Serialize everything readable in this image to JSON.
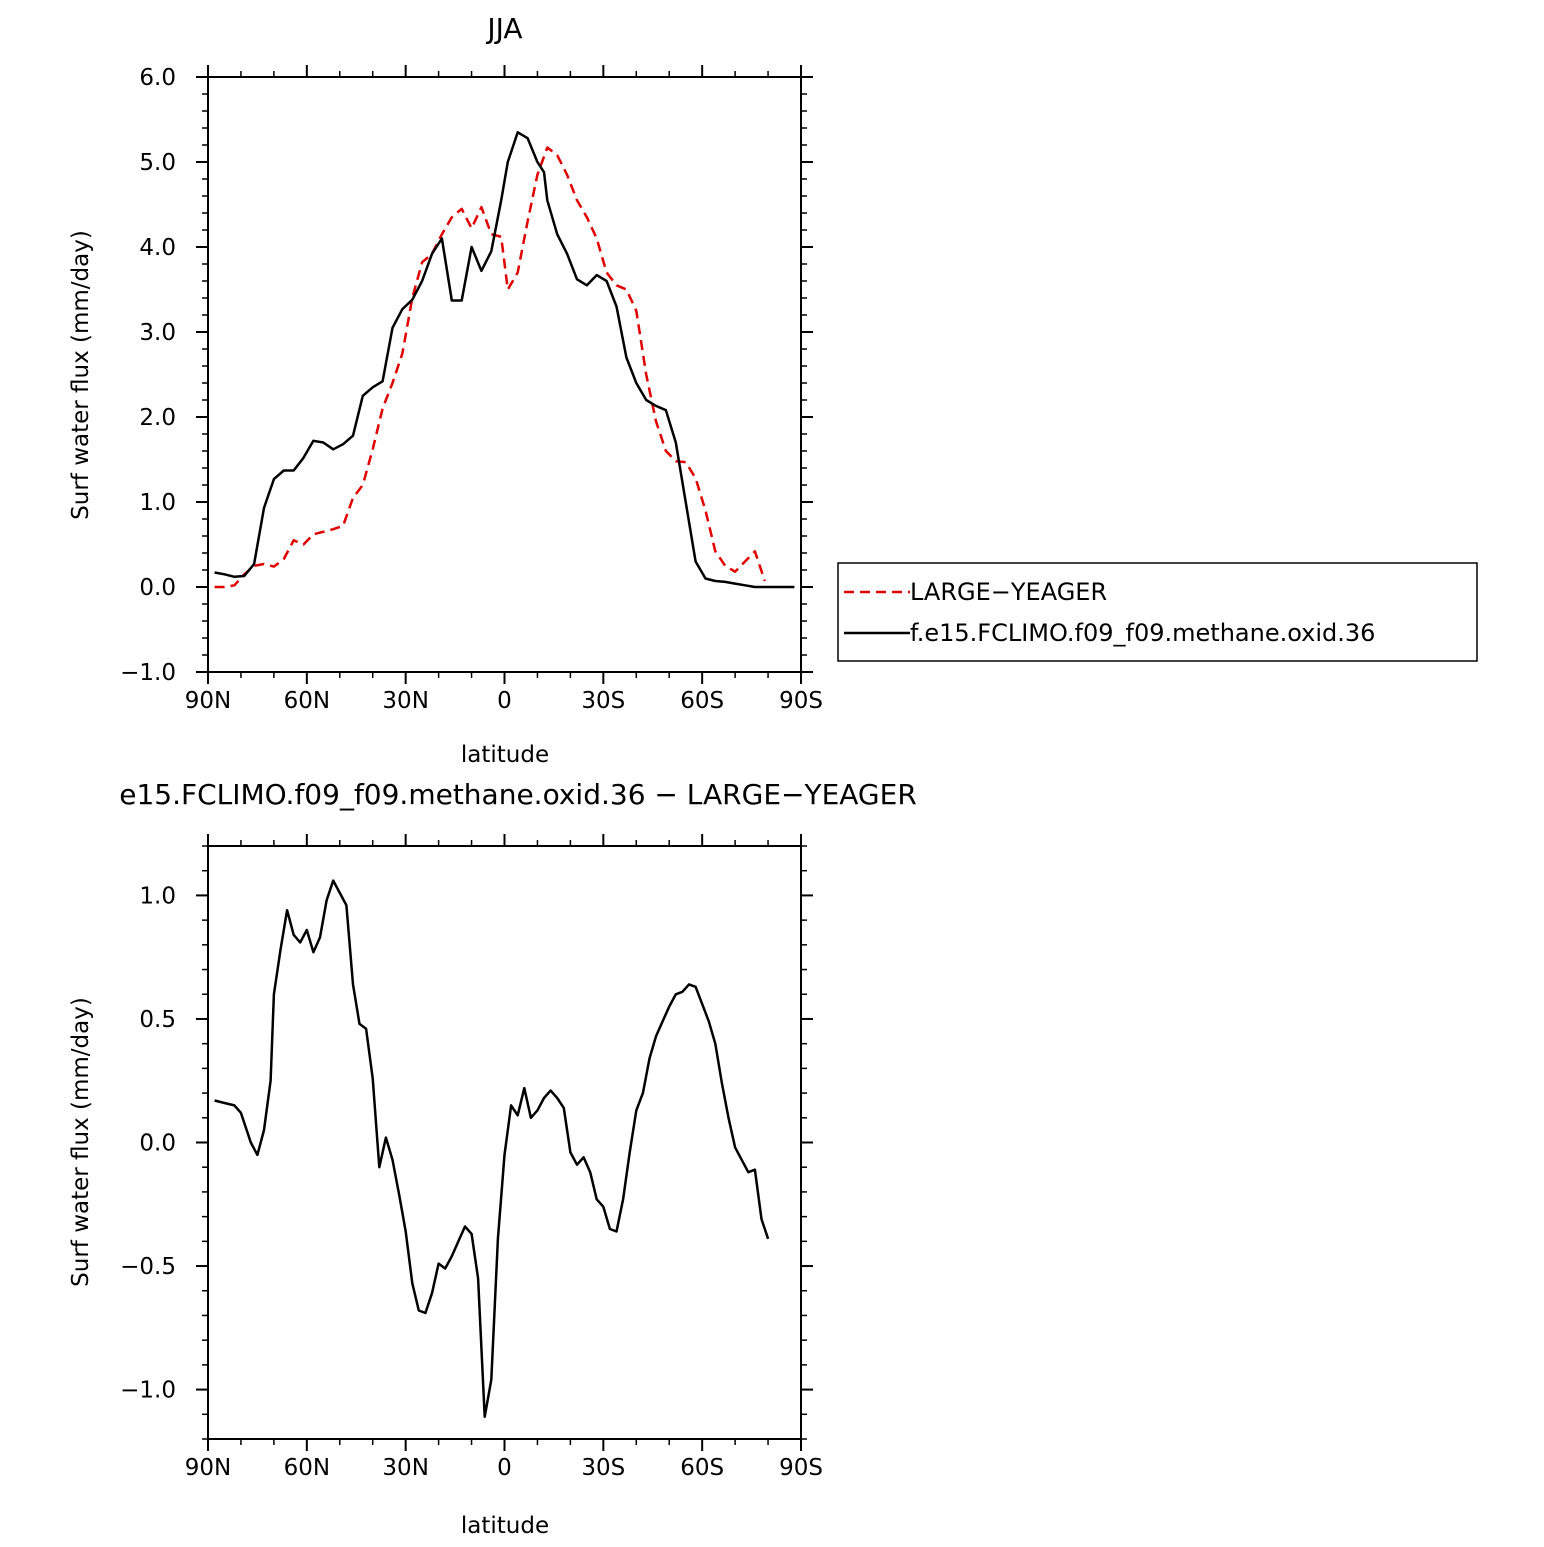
{
  "chart_data": [
    {
      "type": "line",
      "title": "JJA",
      "xlabel": "latitude",
      "ylabel": "Surf water flux (mm/day)",
      "xlim": [
        90,
        -90
      ],
      "ylim": [
        -1.0,
        6.0
      ],
      "xticks": [
        90,
        60,
        30,
        0,
        -30,
        -60,
        -90
      ],
      "xtick_labels": [
        "90N",
        "60N",
        "30N",
        "0",
        "30S",
        "60S",
        "90S"
      ],
      "yticks": [
        -1.0,
        0.0,
        1.0,
        2.0,
        3.0,
        4.0,
        5.0,
        6.0
      ],
      "ytick_labels": [
        "−1.0",
        "0.0",
        "1.0",
        "2.0",
        "3.0",
        "4.0",
        "5.0",
        "6.0"
      ],
      "legend_position": "right",
      "series": [
        {
          "name": "LARGE−YEAGER",
          "color": "#e00000",
          "style": "dashed",
          "x": [
            88,
            85,
            82,
            79,
            76,
            73,
            70,
            67,
            64,
            61,
            58,
            55,
            52,
            49,
            46,
            43,
            40,
            37,
            34,
            31,
            28,
            25,
            22,
            19,
            16,
            13,
            10,
            7,
            4,
            1,
            -1,
            -4,
            -7,
            -10,
            -13,
            -16,
            -19,
            -22,
            -25,
            -28,
            -31,
            -34,
            -37,
            -40,
            -43,
            -46,
            -49,
            -52,
            -55,
            -58,
            -61,
            -64,
            -67,
            -70,
            -73,
            -76,
            -79
          ],
          "y": [
            0.0,
            0.0,
            0.02,
            0.15,
            0.25,
            0.27,
            0.24,
            0.33,
            0.55,
            0.5,
            0.62,
            0.65,
            0.68,
            0.72,
            1.05,
            1.2,
            1.62,
            2.1,
            2.4,
            2.75,
            3.4,
            3.82,
            3.92,
            4.15,
            4.35,
            4.45,
            4.22,
            4.47,
            4.15,
            4.12,
            3.5,
            3.7,
            4.3,
            4.85,
            5.17,
            5.08,
            4.85,
            4.55,
            4.35,
            4.1,
            3.7,
            3.55,
            3.5,
            3.25,
            2.5,
            1.95,
            1.6,
            1.48,
            1.47,
            1.28,
            0.9,
            0.42,
            0.25,
            0.18,
            0.3,
            0.42,
            0.07
          ]
        },
        {
          "name": "f.e15.FCLIMO.f09_f09.methane.oxid.36",
          "color": "#000000",
          "style": "solid",
          "x": [
            88,
            85,
            82,
            79,
            76,
            73,
            70,
            67,
            64,
            61,
            58,
            55,
            52,
            49,
            46,
            43,
            40,
            37,
            34,
            31,
            28,
            25,
            22,
            19,
            16,
            13,
            10,
            7,
            4,
            1,
            -1,
            -4,
            -7,
            -10,
            -12,
            -13,
            -16,
            -19,
            -22,
            -25,
            -28,
            -31,
            -34,
            -37,
            -40,
            -43,
            -46,
            -49,
            -52,
            -55,
            -58,
            -61,
            -64,
            -67,
            -70,
            -73,
            -76,
            -79,
            -82,
            -85,
            -88
          ],
          "y": [
            0.17,
            0.15,
            0.12,
            0.13,
            0.27,
            0.93,
            1.27,
            1.37,
            1.37,
            1.52,
            1.72,
            1.7,
            1.62,
            1.68,
            1.78,
            2.25,
            2.35,
            2.42,
            3.05,
            3.27,
            3.38,
            3.6,
            3.92,
            4.1,
            3.37,
            3.37,
            4.0,
            3.72,
            3.95,
            4.55,
            5.0,
            5.35,
            5.28,
            5.0,
            4.88,
            4.55,
            4.15,
            3.92,
            3.62,
            3.55,
            3.67,
            3.6,
            3.3,
            2.7,
            2.4,
            2.2,
            2.13,
            2.08,
            1.7,
            1.0,
            0.3,
            0.1,
            0.07,
            0.06,
            0.04,
            0.02,
            0.0,
            0.0,
            0.0,
            0.0,
            0.0
          ]
        }
      ]
    },
    {
      "type": "line",
      "title": "e15.FCLIMO.f09_f09.methane.oxid.36 − LARGE−YEAGER",
      "xlabel": "latitude",
      "ylabel": "Surf water flux (mm/day)",
      "xlim": [
        90,
        -90
      ],
      "ylim": [
        -1.2,
        1.2
      ],
      "xticks": [
        90,
        60,
        30,
        0,
        -30,
        -60,
        -90
      ],
      "xtick_labels": [
        "90N",
        "60N",
        "30N",
        "0",
        "30S",
        "60S",
        "90S"
      ],
      "yticks": [
        -1.0,
        -0.5,
        0.0,
        0.5,
        1.0
      ],
      "ytick_labels": [
        "−1.0",
        "−0.5",
        "0.0",
        "0.5",
        "1.0"
      ],
      "series": [
        {
          "name": "",
          "color": "#000000",
          "style": "solid",
          "x": [
            88,
            85,
            82,
            80,
            77,
            75,
            73,
            71,
            70,
            68,
            66,
            64,
            62,
            60,
            58,
            56,
            54,
            52,
            50,
            48,
            46,
            44,
            42,
            40,
            38,
            36,
            34,
            32,
            30,
            28,
            26,
            24,
            22,
            20,
            18,
            16,
            14,
            12,
            10,
            8,
            6,
            4,
            2,
            0,
            -2,
            -4,
            -6,
            -8,
            -10,
            -12,
            -14,
            -16,
            -18,
            -20,
            -22,
            -24,
            -26,
            -28,
            -30,
            -32,
            -34,
            -36,
            -38,
            -40,
            -42,
            -44,
            -46,
            -48,
            -50,
            -52,
            -54,
            -56,
            -58,
            -60,
            -62,
            -64,
            -66,
            -68,
            -70,
            -72,
            -74,
            -76,
            -78,
            -80
          ],
          "y": [
            0.17,
            0.16,
            0.15,
            0.12,
            0.0,
            -0.05,
            0.05,
            0.25,
            0.6,
            0.78,
            0.94,
            0.84,
            0.81,
            0.86,
            0.77,
            0.83,
            0.98,
            1.06,
            1.01,
            0.96,
            0.64,
            0.48,
            0.46,
            0.26,
            -0.1,
            0.02,
            -0.07,
            -0.21,
            -0.36,
            -0.57,
            -0.68,
            -0.69,
            -0.61,
            -0.49,
            -0.51,
            -0.46,
            -0.4,
            -0.34,
            -0.37,
            -0.55,
            -1.11,
            -0.96,
            -0.39,
            -0.05,
            0.15,
            0.11,
            0.22,
            0.1,
            0.13,
            0.18,
            0.21,
            0.18,
            0.14,
            -0.04,
            -0.09,
            -0.06,
            -0.12,
            -0.23,
            -0.26,
            -0.35,
            -0.36,
            -0.23,
            -0.04,
            0.13,
            0.2,
            0.34,
            0.43,
            0.49,
            0.55,
            0.6,
            0.61,
            0.64,
            0.63,
            0.56,
            0.49,
            0.4,
            0.24,
            0.1,
            -0.02,
            -0.07,
            -0.12,
            -0.11,
            -0.31,
            -0.39
          ]
        }
      ]
    }
  ]
}
